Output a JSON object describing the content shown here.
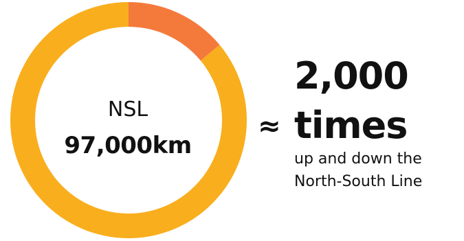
{
  "chart_data": {
    "type": "pie",
    "style": "donut",
    "slices": [
      {
        "label": "",
        "value": 14,
        "color": "#F47A3C"
      },
      {
        "label": "",
        "value": 86,
        "color": "#F9AE1E"
      }
    ],
    "center_label": "NSL",
    "center_value": "97,000km"
  },
  "comparison": {
    "symbol": "≈",
    "number": "2,000",
    "unit": "times",
    "line1": "up and down the",
    "line2": "North-South Line"
  }
}
